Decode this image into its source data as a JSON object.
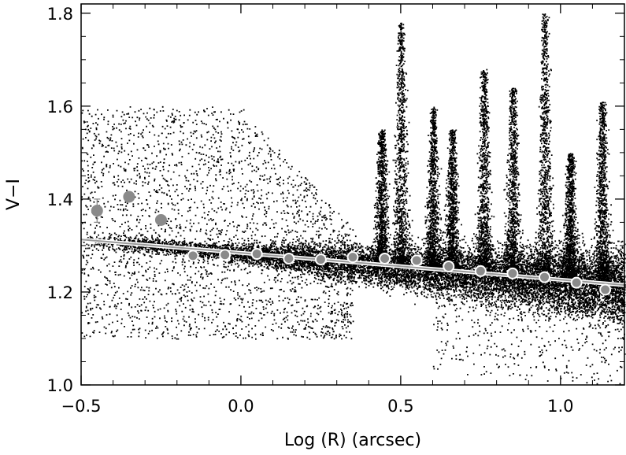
{
  "chart_data": {
    "type": "scatter",
    "xlabel": "Log (R) (arcsec)",
    "ylabel": "V−I",
    "xlim": [
      -0.5,
      1.2
    ],
    "ylim": [
      1.0,
      1.82
    ],
    "xticks": [
      -0.5,
      0.0,
      0.5,
      1.0
    ],
    "xtick_labels": [
      "−0.5",
      "0.0",
      "0.5",
      "1.0"
    ],
    "yticks": [
      1.0,
      1.2,
      1.4,
      1.6,
      1.8
    ],
    "ytick_labels": [
      "1.0",
      "1.2",
      "1.4",
      "1.6",
      "1.8"
    ],
    "grid": false,
    "series": [
      {
        "kind": "profile_points",
        "x": [
          -0.45,
          -0.35,
          -0.25,
          -0.15,
          -0.05,
          0.05,
          0.15,
          0.25,
          0.35,
          0.45,
          0.55,
          0.65,
          0.75,
          0.85,
          0.95,
          1.05,
          1.14
        ],
        "y": [
          1.375,
          1.405,
          1.355,
          1.278,
          1.28,
          1.282,
          1.272,
          1.27,
          1.275,
          1.272,
          1.268,
          1.255,
          1.245,
          1.24,
          1.232,
          1.22,
          1.205
        ],
        "yerr": [
          0.025,
          0.01,
          0.008,
          0.005,
          0.005,
          0.005,
          0.005,
          0.005,
          0.005,
          0.005,
          0.005,
          0.005,
          0.005,
          0.005,
          0.005,
          0.005,
          0.005
        ]
      },
      {
        "kind": "fit_line",
        "x": [
          -0.5,
          1.2
        ],
        "y": [
          1.313,
          1.215
        ]
      }
    ],
    "colors": {
      "pixels": "#000000",
      "profile": "#8a8a8a",
      "fit": "#9a9a9a",
      "marker_edge": "#ffffff"
    }
  }
}
